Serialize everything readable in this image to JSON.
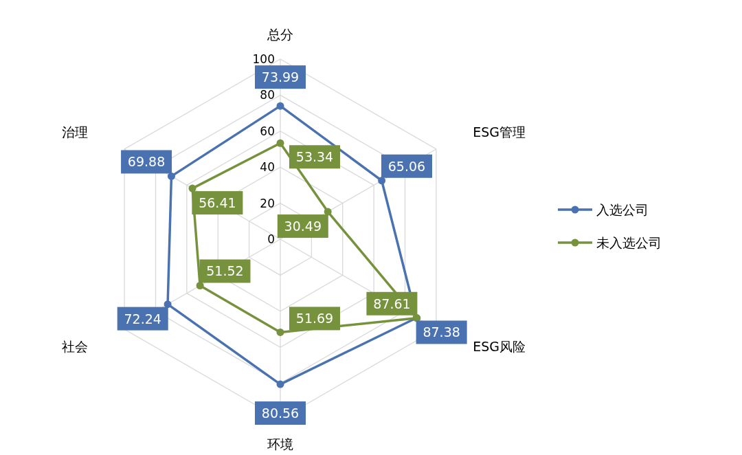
{
  "chart_data": {
    "type": "radar",
    "categories": [
      "总分",
      "ESG管理",
      "ESG风险",
      "环境",
      "社会",
      "治理"
    ],
    "series": [
      {
        "name": "入选公司",
        "color": "#4a72b0",
        "values": [
          73.99,
          65.06,
          87.38,
          80.56,
          72.24,
          69.88
        ]
      },
      {
        "name": "未入选公司",
        "color": "#76923c",
        "values": [
          53.34,
          30.49,
          87.61,
          51.69,
          51.52,
          56.41
        ]
      }
    ],
    "ylim": [
      0,
      100
    ],
    "yticks": [
      0,
      20,
      40,
      60,
      80,
      100
    ],
    "data_labels": true,
    "legend": "right",
    "marker": "circle",
    "grid": true
  }
}
